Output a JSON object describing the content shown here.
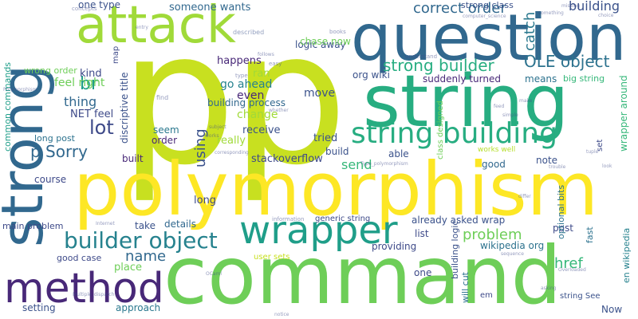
{
  "palette": {
    "yellow": "#d9e021",
    "green": "#6ece58",
    "teal": "#1f9e89",
    "blue": "#31688e",
    "purple": "#482878",
    "lightgreen": "#a0da39",
    "midteal": "#26828e"
  },
  "words": [
    {
      "text": "p",
      "color": "#c8e020"
    },
    {
      "text": "p",
      "color": "#c8e020"
    },
    {
      "text": "command",
      "color": "#6ece58"
    },
    {
      "text": "polymorphism",
      "color": "#fde725"
    },
    {
      "text": "question",
      "color": "#31688e"
    },
    {
      "text": "string",
      "color": "#27ad81"
    },
    {
      "text": "strong",
      "color": "#31688e"
    },
    {
      "text": "attack",
      "color": "#a0da39"
    },
    {
      "text": "wrapper",
      "color": "#1f9e89"
    },
    {
      "text": "method",
      "color": "#482878"
    },
    {
      "text": "string building",
      "color": "#27ad81"
    },
    {
      "text": "builder object",
      "color": "#26828e"
    },
    {
      "text": "correct order",
      "color": "#31688e"
    },
    {
      "text": "OLE object",
      "color": "#2c728e"
    },
    {
      "text": "strong builder",
      "color": "#27ad81"
    },
    {
      "text": "catch",
      "color": "#2a788e"
    },
    {
      "text": "building",
      "color": "#3b528b"
    },
    {
      "text": "lot",
      "color": "#3e4a89"
    },
    {
      "text": "br",
      "color": "#1f9e89"
    },
    {
      "text": "p Sorry",
      "color": "#31688e"
    },
    {
      "text": "name",
      "color": "#31688e"
    },
    {
      "text": "problem",
      "color": "#6ece58"
    },
    {
      "text": "href",
      "color": "#35b779"
    },
    {
      "text": "using",
      "color": "#3b528b"
    },
    {
      "text": "send",
      "color": "#35b779"
    },
    {
      "text": "thing",
      "color": "#31688e"
    },
    {
      "text": "feel right",
      "color": "#6ece58"
    },
    {
      "text": "someone wants",
      "color": "#31688e"
    },
    {
      "text": "one type",
      "color": "#3b528b"
    },
    {
      "text": "logic away",
      "color": "#3b528b"
    },
    {
      "text": "strong class",
      "color": "#3b528b"
    },
    {
      "text": "chase now",
      "color": "#6ece58"
    },
    {
      "text": "happens",
      "color": "#482878"
    },
    {
      "text": "ran",
      "color": "#a0da39"
    },
    {
      "text": "go ahead",
      "color": "#26828e"
    },
    {
      "text": "org wiki",
      "color": "#3b528b"
    },
    {
      "text": "suddenly turned",
      "color": "#482878"
    },
    {
      "text": "means",
      "color": "#2c728e"
    },
    {
      "text": "big string",
      "color": "#35b779"
    },
    {
      "text": "even",
      "color": "#482878"
    },
    {
      "text": "move",
      "color": "#3b528b"
    },
    {
      "text": "building process",
      "color": "#31688e"
    },
    {
      "text": "change",
      "color": "#a0da39"
    },
    {
      "text": "NET feel",
      "color": "#3e4a89"
    },
    {
      "text": "kind",
      "color": "#3e4a89"
    },
    {
      "text": "wrong order",
      "color": "#6ece58"
    },
    {
      "text": "seem",
      "color": "#2a788e"
    },
    {
      "text": "receive",
      "color": "#3b528b"
    },
    {
      "text": "order",
      "color": "#482878"
    },
    {
      "text": "really",
      "color": "#a0da39"
    },
    {
      "text": "tried",
      "color": "#3b528b"
    },
    {
      "text": "build",
      "color": "#3b528b"
    },
    {
      "text": "able",
      "color": "#3b528b"
    },
    {
      "text": "long post",
      "color": "#2c728e"
    },
    {
      "text": "built",
      "color": "#482878"
    },
    {
      "text": "stackoverflow",
      "color": "#3e4a89"
    },
    {
      "text": "good",
      "color": "#31688e"
    },
    {
      "text": "note",
      "color": "#3b528b"
    },
    {
      "text": "works well",
      "color": "#b5de2b"
    },
    {
      "text": "course",
      "color": "#3e4a89"
    },
    {
      "text": "long",
      "color": "#3e4a89"
    },
    {
      "text": "details",
      "color": "#31688e"
    },
    {
      "text": "take",
      "color": "#3b528b"
    },
    {
      "text": "main problem",
      "color": "#3e4a89"
    },
    {
      "text": "generic string",
      "color": "#3e4a89"
    },
    {
      "text": "already asked wrap",
      "color": "#3b528b"
    },
    {
      "text": "list",
      "color": "#3e4a89"
    },
    {
      "text": "providing",
      "color": "#3e4a89"
    },
    {
      "text": "wikipedia org",
      "color": "#2c728e"
    },
    {
      "text": "post",
      "color": "#3e4a89"
    },
    {
      "text": "fast",
      "color": "#2c728e"
    },
    {
      "text": "good case",
      "color": "#3e4a89"
    },
    {
      "text": "place",
      "color": "#6ece58"
    },
    {
      "text": "one",
      "color": "#3e4a89"
    },
    {
      "text": "setting",
      "color": "#3b528b"
    },
    {
      "text": "approach",
      "color": "#2a788e"
    },
    {
      "text": "string See",
      "color": "#3b528b"
    },
    {
      "text": "Now",
      "color": "#3b528b"
    },
    {
      "text": "em",
      "color": "#3e4a89"
    },
    {
      "text": "common commands",
      "color": "#1f9e89"
    },
    {
      "text": "discriptive title",
      "color": "#3b528b"
    },
    {
      "text": "map",
      "color": "#3e4a89"
    },
    {
      "text": "wrapper around",
      "color": "#35b779"
    },
    {
      "text": "set",
      "color": "#3e4a89"
    },
    {
      "text": "optional bits",
      "color": "#2c728e"
    },
    {
      "text": "en wikipedia",
      "color": "#26828e"
    },
    {
      "text": "building logic",
      "color": "#3b528b"
    },
    {
      "text": "will cut",
      "color": "#2c728e"
    },
    {
      "text": "class designed",
      "color": "#6ece58"
    },
    {
      "text": "user sets",
      "color": "#c8e020"
    },
    {
      "text": "described",
      "color": "#3b528b"
    },
    {
      "text": "find",
      "color": "#3e4a89"
    },
    {
      "text": "easy",
      "color": "#3e4a89"
    },
    {
      "text": "type",
      "color": "#3e4a89"
    },
    {
      "text": "books",
      "color": "#3e4a89"
    },
    {
      "text": "information",
      "color": "#3e4a89"
    },
    {
      "text": "concepts",
      "color": "#3e4a89"
    },
    {
      "text": "understand",
      "color": "#3e4a89"
    },
    {
      "text": "computer_science",
      "color": "#3e4a89"
    },
    {
      "text": "Polymorphism",
      "color": "#3e4a89"
    },
    {
      "text": "Type_polymorphism",
      "color": "#3e4a89"
    },
    {
      "text": "Multiple_dispatch",
      "color": "#3e4a89"
    },
    {
      "text": "OCaml",
      "color": "#3e4a89"
    },
    {
      "text": "Internet",
      "color": "#3e4a89"
    },
    {
      "text": "Overloaded",
      "color": "#3e4a89"
    },
    {
      "text": "sequence",
      "color": "#3e4a89"
    },
    {
      "text": "simple",
      "color": "#3e4a89"
    },
    {
      "text": "make",
      "color": "#3e4a89"
    },
    {
      "text": "choice",
      "color": "#3e4a89"
    },
    {
      "text": "something",
      "color": "#3e4a89"
    },
    {
      "text": "tuple",
      "color": "#3e4a89"
    },
    {
      "text": "look",
      "color": "#3e4a89"
    },
    {
      "text": "differ",
      "color": "#3e4a89"
    },
    {
      "text": "asking",
      "color": "#3e4a89"
    },
    {
      "text": "notice",
      "color": "#3e4a89"
    },
    {
      "text": "follows",
      "color": "#3e4a89"
    },
    {
      "text": "whether",
      "color": "#3e4a89"
    },
    {
      "text": "corresponding",
      "color": "#3e4a89"
    },
    {
      "text": "subject",
      "color": "#3e4a89"
    },
    {
      "text": "works",
      "color": "#3e4a89"
    },
    {
      "text": "entry",
      "color": "#3e4a89"
    },
    {
      "text": "trouble",
      "color": "#3e4a89"
    },
    {
      "text": "missing",
      "color": "#3e4a89"
    },
    {
      "text": "feed",
      "color": "#3e4a89"
    }
  ]
}
